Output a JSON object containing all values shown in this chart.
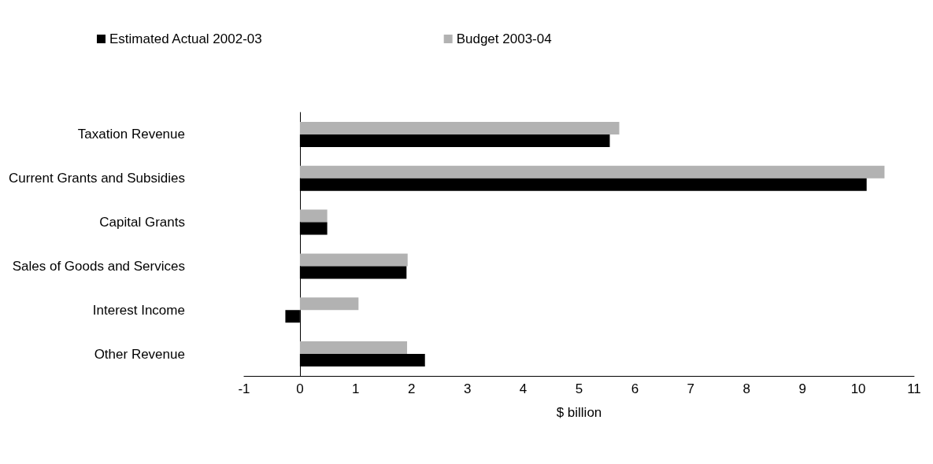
{
  "chart_data": {
    "type": "bar",
    "orientation": "horizontal",
    "xlabel": "$ billion",
    "categories": [
      "Taxation Revenue",
      "Current Grants and Subsidies",
      "Capital Grants",
      "Sales of Goods and Services",
      "Interest Income",
      "Other Revenue"
    ],
    "series": [
      {
        "name": "Estimated Actual 2002-03",
        "color": "#000000",
        "values": [
          5.55,
          10.15,
          0.49,
          1.91,
          -0.26,
          2.24
        ]
      },
      {
        "name": "Budget 2003-04",
        "color": "#b2b2b2",
        "values": [
          5.72,
          10.47,
          0.49,
          1.93,
          1.05,
          1.92
        ]
      }
    ],
    "xlim": [
      -1,
      11
    ],
    "xticks": [
      -1,
      0,
      1,
      2,
      3,
      4,
      5,
      6,
      7,
      8,
      9,
      10,
      11
    ],
    "legend": "top left"
  }
}
